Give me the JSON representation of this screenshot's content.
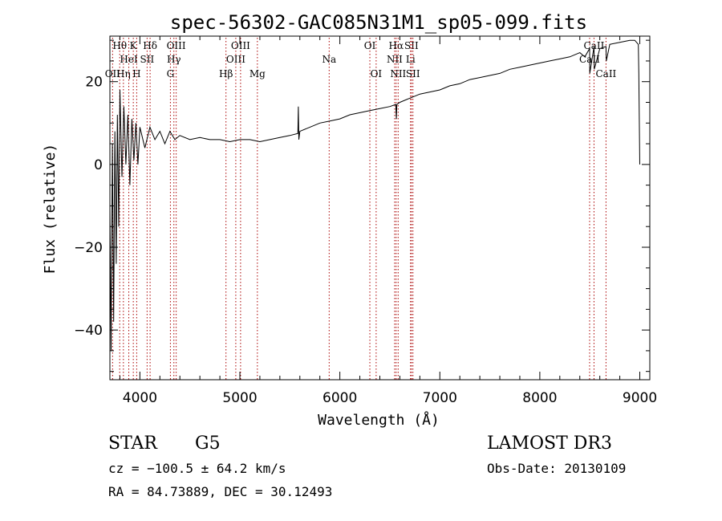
{
  "chart_data": {
    "type": "line",
    "title": "spec-56302-GAC085N31M1_sp05-099.fits",
    "xlabel": "Wavelength (Å)",
    "ylabel": "Flux (relative)",
    "xlim": [
      3700,
      9100
    ],
    "ylim": [
      -52,
      31
    ],
    "xticks": [
      4000,
      5000,
      6000,
      7000,
      8000,
      9000
    ],
    "yticks": [
      -40,
      -20,
      0,
      20
    ],
    "xtick_labels": [
      "4000",
      "5000",
      "6000",
      "7000",
      "8000",
      "9000"
    ],
    "ytick_labels": [
      "−40",
      "−20",
      "0",
      "20"
    ],
    "line_color": "#000000",
    "marker_color": "#aa0000",
    "series": [
      {
        "name": "flux",
        "x": [
          3700,
          3712,
          3725,
          3738,
          3750,
          3763,
          3775,
          3788,
          3800,
          3820,
          3840,
          3860,
          3880,
          3900,
          3920,
          3940,
          3960,
          3980,
          4000,
          4050,
          4100,
          4150,
          4200,
          4250,
          4300,
          4350,
          4400,
          4500,
          4600,
          4700,
          4800,
          4900,
          5000,
          5100,
          5200,
          5300,
          5400,
          5500,
          5580,
          5585,
          5590,
          5600,
          5700,
          5800,
          5900,
          6000,
          6100,
          6200,
          6300,
          6400,
          6500,
          6560,
          6565,
          6570,
          6600,
          6700,
          6800,
          6900,
          7000,
          7100,
          7200,
          7300,
          7400,
          7500,
          7600,
          7700,
          7800,
          7900,
          8000,
          8100,
          8200,
          8300,
          8400,
          8450,
          8498,
          8500,
          8542,
          8545,
          8600,
          8662,
          8665,
          8700,
          8800,
          8900,
          8950,
          8985,
          8990,
          9000
        ],
        "y": [
          -10,
          -45,
          5,
          -38,
          8,
          -24,
          12,
          -15,
          18,
          -3,
          14,
          0,
          12,
          -5,
          11,
          1,
          10,
          0,
          9,
          4,
          9,
          6,
          8,
          5,
          8,
          6,
          7,
          6,
          6.5,
          6,
          6,
          5.5,
          6,
          6,
          5.5,
          6,
          6.5,
          7,
          7.5,
          14,
          6,
          8,
          9,
          10,
          10.5,
          11,
          12,
          12.5,
          13,
          13.5,
          14,
          14.5,
          11,
          14.5,
          15,
          16,
          17,
          17.5,
          18,
          19,
          19.5,
          20.5,
          21,
          21.5,
          22,
          23,
          23.5,
          24,
          24.5,
          25,
          25.5,
          26,
          27,
          26,
          28,
          22,
          28.5,
          23,
          28,
          28.5,
          25,
          29,
          29.5,
          30,
          30,
          29,
          22,
          0
        ]
      }
    ],
    "lines": [
      {
        "label": "OII",
        "wavelength": 3727,
        "row": 2
      },
      {
        "label": "Hθ",
        "wavelength": 3798,
        "row": 0
      },
      {
        "label": "Hη",
        "wavelength": 3835,
        "row": 2
      },
      {
        "label": "HeI",
        "wavelength": 3889,
        "row": 1
      },
      {
        "label": "K",
        "wavelength": 3934,
        "row": 0
      },
      {
        "label": "H",
        "wavelength": 3968,
        "row": 2
      },
      {
        "label": "SII",
        "wavelength": 4072,
        "row": 1
      },
      {
        "label": "Hδ",
        "wavelength": 4102,
        "row": 0
      },
      {
        "label": "G",
        "wavelength": 4305,
        "row": 2
      },
      {
        "label": "Hγ",
        "wavelength": 4340,
        "row": 1
      },
      {
        "label": "OIII",
        "wavelength": 4363,
        "row": 0
      },
      {
        "label": "Hβ",
        "wavelength": 4861,
        "row": 2
      },
      {
        "label": "OIII",
        "wavelength": 4959,
        "row": 1
      },
      {
        "label": "OIII",
        "wavelength": 5007,
        "row": 0
      },
      {
        "label": "Mg",
        "wavelength": 5175,
        "row": 2
      },
      {
        "label": "Na",
        "wavelength": 5893,
        "row": 1
      },
      {
        "label": "OI",
        "wavelength": 6300,
        "row": 0
      },
      {
        "label": "OI",
        "wavelength": 6363,
        "row": 2
      },
      {
        "label": "NII",
        "wavelength": 6548,
        "row": 1
      },
      {
        "label": "Hα",
        "wavelength": 6563,
        "row": 0
      },
      {
        "label": "NII",
        "wavelength": 6583,
        "row": 2
      },
      {
        "label": "Li",
        "wavelength": 6707,
        "row": 1
      },
      {
        "label": "SII",
        "wavelength": 6716,
        "row": 0
      },
      {
        "label": "SII",
        "wavelength": 6731,
        "row": 2
      },
      {
        "label": "CaII",
        "wavelength": 8498,
        "row": 1
      },
      {
        "label": "CaII",
        "wavelength": 8542,
        "row": 0
      },
      {
        "label": "CaII",
        "wavelength": 8662,
        "row": 2
      }
    ]
  },
  "info": {
    "class": "STAR",
    "subclass": "G5",
    "cz": "cz = −100.5 ± 64.2 km/s",
    "radec": "RA =  84.73889, DEC =  30.12493",
    "survey": "LAMOST DR3",
    "obs_date": "Obs-Date: 20130109"
  }
}
